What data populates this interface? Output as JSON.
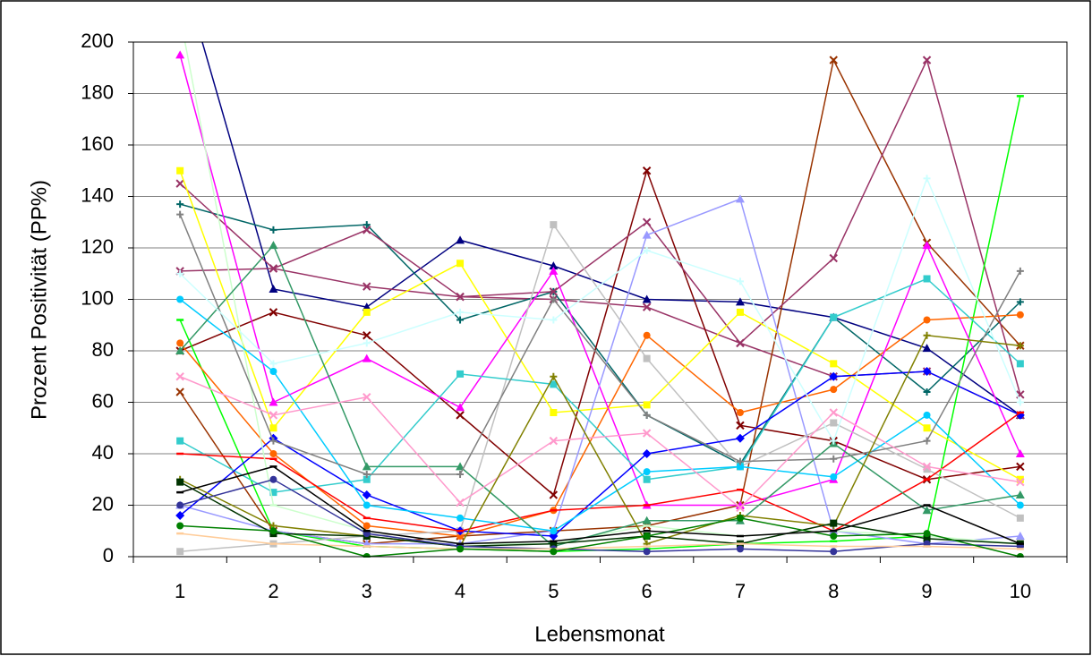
{
  "chart_data": {
    "type": "line",
    "y_label": "Prozent Positivität (PP%)",
    "x_label": "Lebensmonat",
    "categories": [
      1,
      2,
      3,
      4,
      5,
      6,
      7,
      8,
      9,
      10
    ],
    "ylim": [
      0,
      200
    ],
    "yticks": [
      0,
      20,
      40,
      60,
      80,
      100,
      120,
      140,
      160,
      180,
      200
    ],
    "grid": true,
    "series": [
      {
        "color": "#000080",
        "marker": "triangle",
        "values": [
          230,
          104,
          97,
          123,
          113,
          100,
          99,
          93,
          81,
          55
        ]
      },
      {
        "color": "#993366",
        "marker": "x",
        "values": [
          111,
          112,
          105,
          101,
          100,
          97,
          83,
          70,
          72,
          55
        ]
      },
      {
        "color": "#006666",
        "marker": "plus",
        "values": [
          137,
          127,
          129,
          92,
          103,
          55,
          36,
          93,
          64,
          99
        ]
      },
      {
        "color": "#800000",
        "marker": "x",
        "values": [
          80,
          95,
          86,
          55,
          24,
          150,
          51,
          45,
          30,
          35
        ]
      },
      {
        "color": "#993300",
        "marker": "x",
        "values": [
          64,
          10,
          5,
          8,
          10,
          12,
          20,
          193,
          122,
          82
        ]
      },
      {
        "color": "#993366",
        "marker": "x",
        "values": [
          145,
          112,
          127,
          101,
          103,
          130,
          83,
          116,
          193,
          63
        ]
      },
      {
        "color": "#00ff00",
        "marker": "dash",
        "values": [
          92,
          10,
          4,
          3,
          2,
          3,
          5,
          6,
          8,
          179
        ]
      },
      {
        "color": "#ff6600",
        "marker": "circle",
        "values": [
          83,
          40,
          12,
          8,
          18,
          86,
          56,
          65,
          92,
          94
        ]
      },
      {
        "color": "#ffff00",
        "marker": "square",
        "values": [
          150,
          50,
          95,
          114,
          56,
          59,
          95,
          75,
          50,
          30
        ]
      },
      {
        "color": "#ff00ff",
        "marker": "triangle",
        "values": [
          195,
          60,
          77,
          58,
          111,
          20,
          20,
          30,
          121,
          40
        ]
      },
      {
        "color": "#9999ff",
        "marker": "triangle",
        "values": [
          20,
          10,
          5,
          5,
          10,
          125,
          139,
          10,
          5,
          8
        ]
      },
      {
        "color": "#c0c0c0",
        "marker": "square",
        "values": [
          2,
          5,
          8,
          10,
          129,
          77,
          35,
          52,
          34,
          15
        ]
      },
      {
        "color": "#33cccc",
        "marker": "square",
        "values": [
          45,
          25,
          30,
          71,
          67,
          30,
          35,
          93,
          108,
          75
        ]
      },
      {
        "color": "#0000ff",
        "marker": "diamond",
        "values": [
          16,
          46,
          24,
          10,
          8,
          40,
          46,
          70,
          72,
          55
        ]
      },
      {
        "color": "#ff0000",
        "marker": "dash",
        "values": [
          40,
          38,
          15,
          10,
          18,
          20,
          26,
          10,
          30,
          56
        ]
      },
      {
        "color": "#ccffcc",
        "marker": "dash",
        "values": [
          210,
          20,
          10,
          5,
          5,
          12,
          8,
          10,
          8,
          5
        ]
      },
      {
        "color": "#00ccff",
        "marker": "circle",
        "values": [
          100,
          72,
          20,
          15,
          10,
          33,
          35,
          31,
          55,
          20
        ]
      },
      {
        "color": "#339966",
        "marker": "triangle",
        "values": [
          80,
          121,
          35,
          35,
          4,
          14,
          14,
          44,
          18,
          24
        ]
      },
      {
        "color": "#808080",
        "marker": "plus",
        "values": [
          133,
          45,
          32,
          32,
          100,
          55,
          37,
          38,
          45,
          111
        ]
      },
      {
        "color": "#ccffff",
        "marker": "plus",
        "values": [
          110,
          75,
          83,
          95,
          92,
          119,
          107,
          45,
          147,
          60
        ]
      },
      {
        "color": "#ff99cc",
        "marker": "x",
        "values": [
          70,
          55,
          62,
          21,
          45,
          48,
          19,
          56,
          35,
          29
        ]
      },
      {
        "color": "#808000",
        "marker": "plus",
        "values": [
          30,
          12,
          8,
          4,
          70,
          5,
          16,
          12,
          86,
          82
        ]
      },
      {
        "color": "#003300",
        "marker": "square",
        "values": [
          29,
          9,
          8,
          4,
          5,
          8,
          5,
          13,
          7,
          5
        ]
      },
      {
        "color": "#333399",
        "marker": "circle",
        "values": [
          20,
          30,
          9,
          4,
          3,
          2,
          3,
          2,
          5,
          4
        ]
      },
      {
        "color": "#ffcc99",
        "marker": "dash",
        "values": [
          9,
          5,
          4,
          3,
          3,
          4,
          5,
          4,
          4,
          3
        ]
      },
      {
        "color": "#008000",
        "marker": "circle",
        "values": [
          12,
          10,
          0,
          3,
          2,
          8,
          15,
          8,
          9,
          0
        ]
      },
      {
        "color": "#000000",
        "marker": "dash",
        "values": [
          25,
          35,
          10,
          5,
          6,
          10,
          8,
          10,
          20,
          5
        ]
      }
    ]
  }
}
